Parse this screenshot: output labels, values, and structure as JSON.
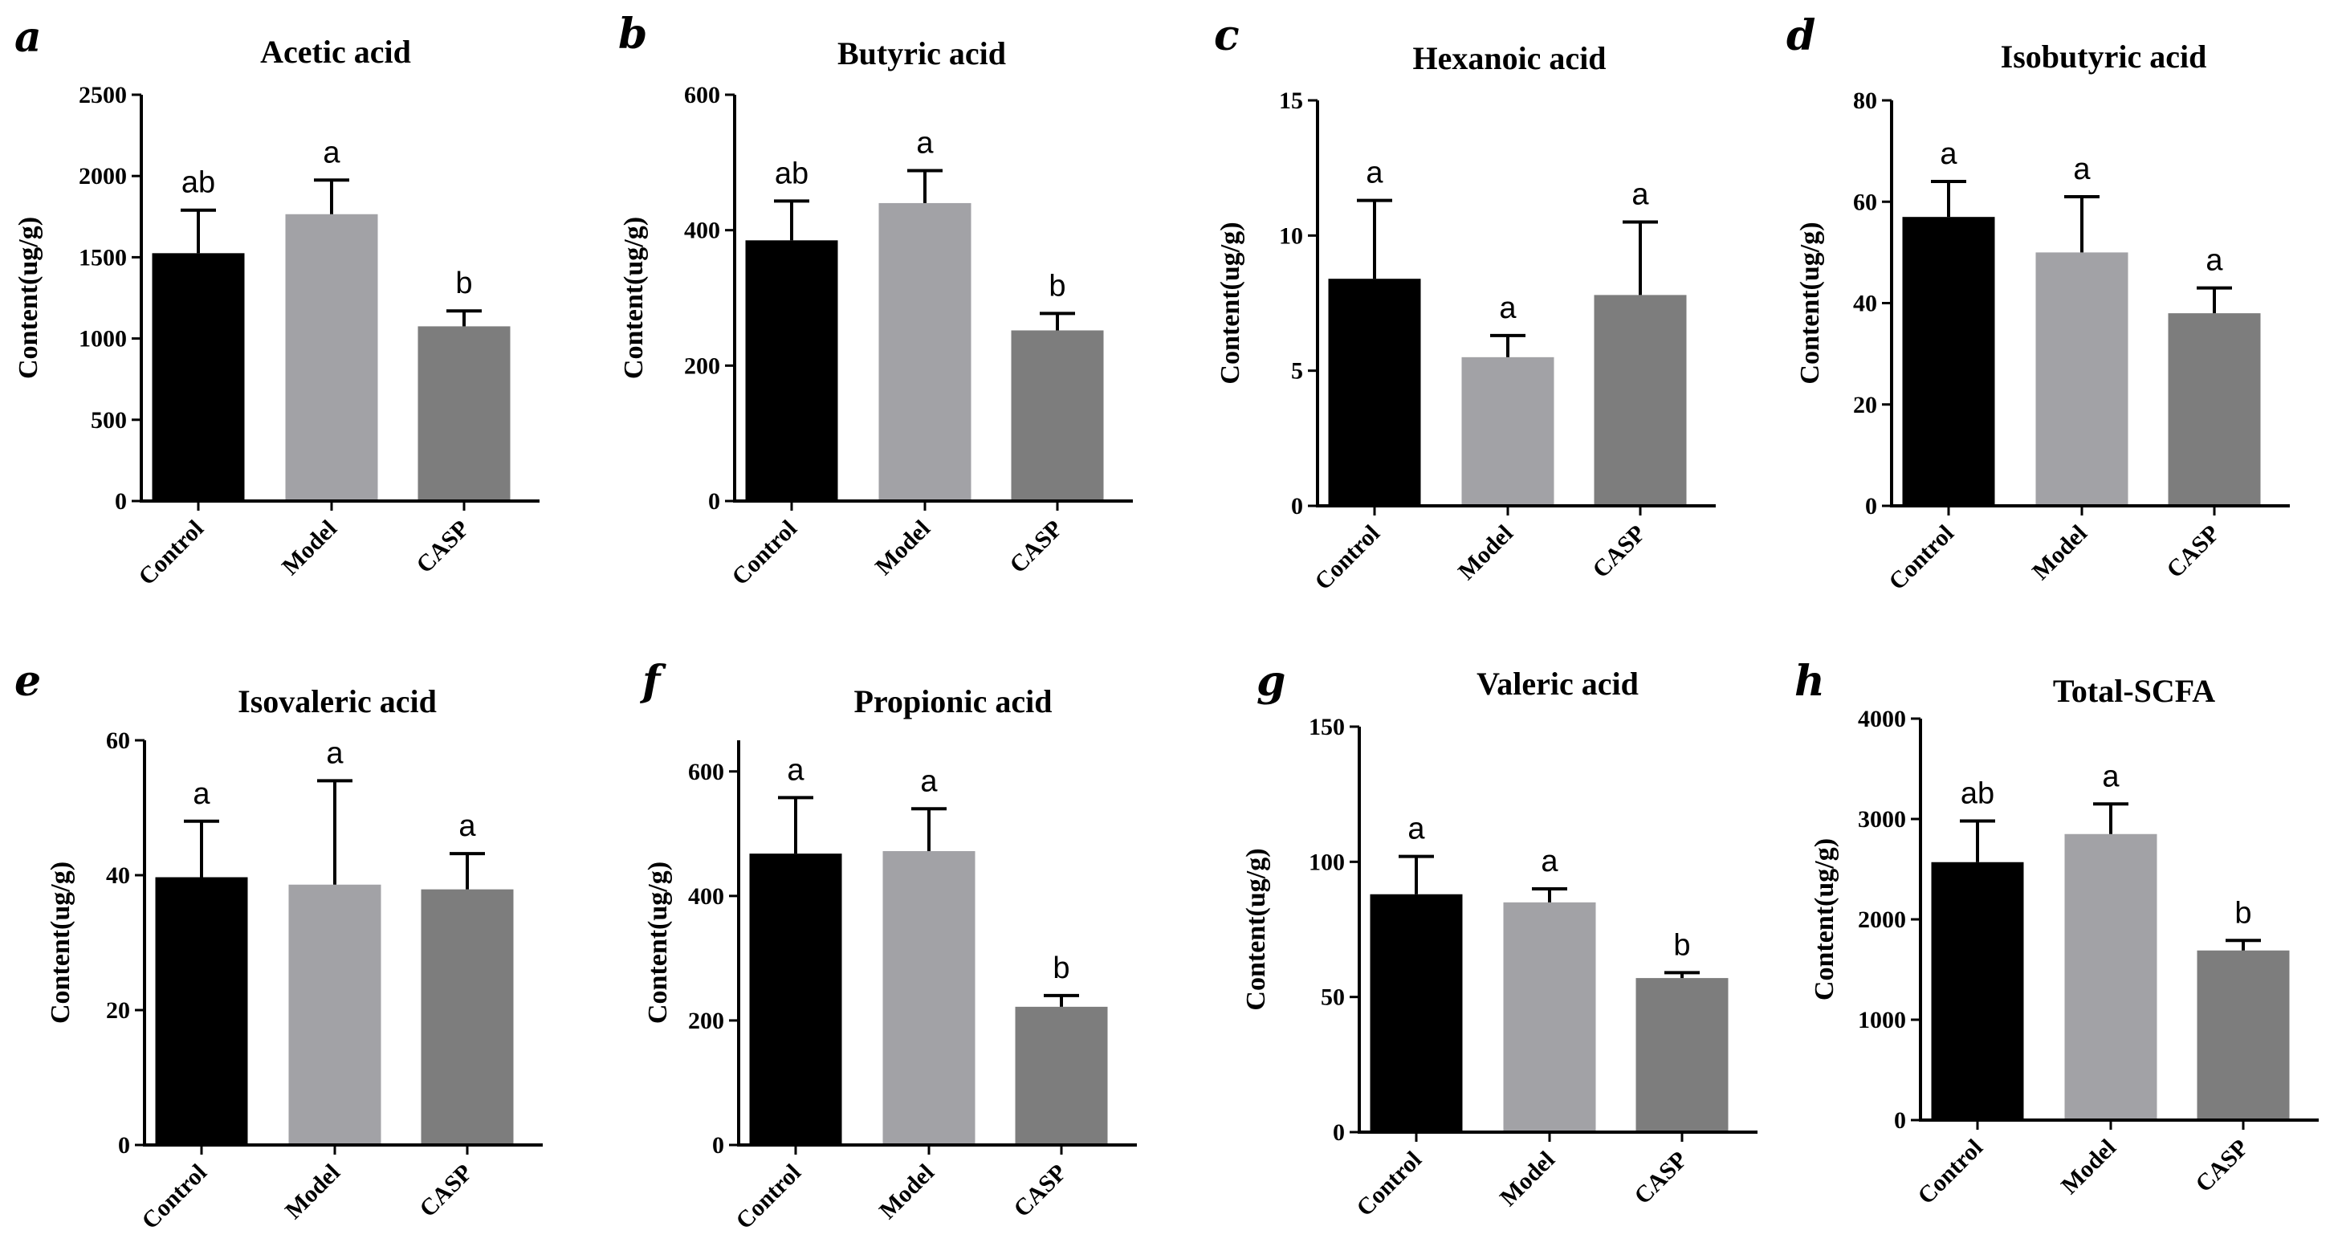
{
  "chart_data": [
    {
      "type": "bar",
      "letter": "a",
      "title": "Acetic acid",
      "ylabel": "Content(ug/g)",
      "categories": [
        "Control",
        "Model",
        "CASP"
      ],
      "values": [
        1525,
        1765,
        1075
      ],
      "errors": [
        265,
        210,
        95
      ],
      "significance": [
        "ab",
        "a",
        "b"
      ],
      "ylim": [
        0,
        2500
      ],
      "yticks": [
        "0",
        "500",
        "1000",
        "1500",
        "2000",
        "2500"
      ],
      "colors": [
        "#000000",
        "#a2a2a6",
        "#7d7d7d"
      ]
    },
    {
      "type": "bar",
      "letter": "b",
      "title": "Butyric acid",
      "ylabel": "Content(ug/g)",
      "categories": [
        "Control",
        "Model",
        "CASP"
      ],
      "values": [
        385,
        440,
        252
      ],
      "errors": [
        58,
        48,
        25
      ],
      "significance": [
        "ab",
        "a",
        "b"
      ],
      "ylim": [
        0,
        600
      ],
      "yticks": [
        "0",
        "200",
        "400",
        "600"
      ],
      "colors": [
        "#000000",
        "#a2a2a6",
        "#7d7d7d"
      ]
    },
    {
      "type": "bar",
      "letter": "c",
      "title": "Hexanoic acid",
      "ylabel": "Content(ug/g)",
      "categories": [
        "Control",
        "Model",
        "CASP"
      ],
      "values": [
        8.4,
        5.5,
        7.8
      ],
      "errors": [
        2.9,
        0.8,
        2.7
      ],
      "significance": [
        "a",
        "a",
        "a"
      ],
      "ylim": [
        0,
        15
      ],
      "yticks": [
        "0",
        "5",
        "10",
        "15"
      ],
      "colors": [
        "#000000",
        "#a2a2a6",
        "#7d7d7d"
      ]
    },
    {
      "type": "bar",
      "letter": "d",
      "title": "Isobutyric acid",
      "ylabel": "Content(ug/g)",
      "categories": [
        "Control",
        "Model",
        "CASP"
      ],
      "values": [
        57,
        50,
        38
      ],
      "errors": [
        7,
        11,
        5
      ],
      "significance": [
        "a",
        "a",
        "a"
      ],
      "ylim": [
        0,
        80
      ],
      "yticks": [
        "0",
        "20",
        "40",
        "60",
        "80"
      ],
      "colors": [
        "#000000",
        "#a2a2a6",
        "#7d7d7d"
      ]
    },
    {
      "type": "bar",
      "letter": "e",
      "title": "Isovaleric acid",
      "ylabel": "Content(ug/g)",
      "categories": [
        "Control",
        "Model",
        "CASP"
      ],
      "values": [
        39.7,
        38.6,
        37.9
      ],
      "errors": [
        8.3,
        15.4,
        5.3
      ],
      "significance": [
        "a",
        "a",
        "a"
      ],
      "ylim": [
        0,
        60
      ],
      "yticks": [
        "0",
        "20",
        "40",
        "60"
      ],
      "colors": [
        "#000000",
        "#a2a2a6",
        "#7d7d7d"
      ]
    },
    {
      "type": "bar",
      "letter": "f",
      "title": "Propionic acid",
      "ylabel": "Content(ug/g)",
      "categories": [
        "Control",
        "Model",
        "CASP"
      ],
      "values": [
        468,
        472,
        222
      ],
      "errors": [
        90,
        68,
        18
      ],
      "significance": [
        "a",
        "a",
        "b"
      ],
      "ylim": [
        0,
        650
      ],
      "yticks": [
        "0",
        "200",
        "400",
        "600"
      ],
      "colors": [
        "#000000",
        "#a2a2a6",
        "#7d7d7d"
      ]
    },
    {
      "type": "bar",
      "letter": "g",
      "title": "Valeric acid",
      "ylabel": "Content(ug/g)",
      "categories": [
        "Control",
        "Model",
        "CASP"
      ],
      "values": [
        88,
        85,
        57
      ],
      "errors": [
        14,
        5,
        2
      ],
      "significance": [
        "a",
        "a",
        "b"
      ],
      "ylim": [
        0,
        150
      ],
      "yticks": [
        "0",
        "50",
        "100",
        "150"
      ],
      "colors": [
        "#000000",
        "#a2a2a6",
        "#7d7d7d"
      ]
    },
    {
      "type": "bar",
      "letter": "h",
      "title": "Total-SCFA",
      "ylabel": "Content(ug/g)",
      "categories": [
        "Control",
        "Model",
        "CASP"
      ],
      "values": [
        2570,
        2850,
        1690
      ],
      "errors": [
        410,
        300,
        100
      ],
      "significance": [
        "ab",
        "a",
        "b"
      ],
      "ylim": [
        0,
        4000
      ],
      "yticks": [
        "0",
        "1000",
        "2000",
        "3000",
        "4000"
      ],
      "colors": [
        "#000000",
        "#a2a2a6",
        "#7d7d7d"
      ]
    }
  ]
}
